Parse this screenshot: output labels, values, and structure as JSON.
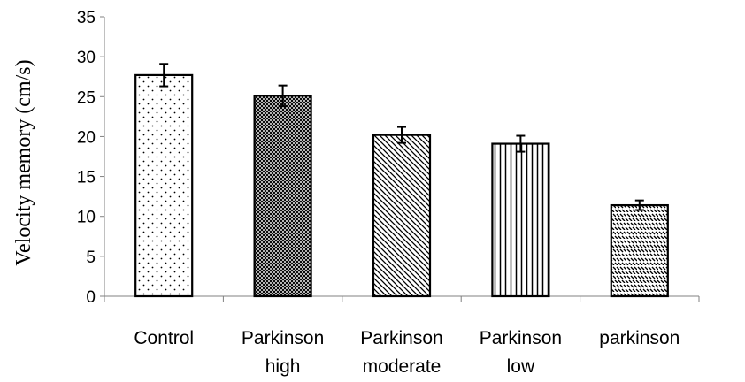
{
  "chart_data": {
    "type": "bar",
    "title": "",
    "xlabel": "",
    "ylabel": "Velocity memory (cm/s)",
    "ylim": [
      0,
      35
    ],
    "yticks": [
      0,
      5,
      10,
      15,
      20,
      25,
      30,
      35
    ],
    "grid": false,
    "legend": "none",
    "categories": [
      [
        "Control"
      ],
      [
        "Parkinson",
        "high"
      ],
      [
        "Parkinson",
        "moderate"
      ],
      [
        "Parkinson",
        "low"
      ],
      [
        "parkinson"
      ]
    ],
    "values": [
      27.7,
      25.1,
      20.2,
      19.1,
      11.4
    ],
    "errors": [
      1.4,
      1.3,
      1.0,
      1.0,
      0.6
    ],
    "patterns": [
      "dots",
      "crosshatch",
      "diagonal",
      "vertical",
      "dashes"
    ],
    "colors": {
      "bar_stroke": "#000000",
      "bar_fill": "#ffffff",
      "pattern": "#000000",
      "axis": "#808080"
    }
  }
}
